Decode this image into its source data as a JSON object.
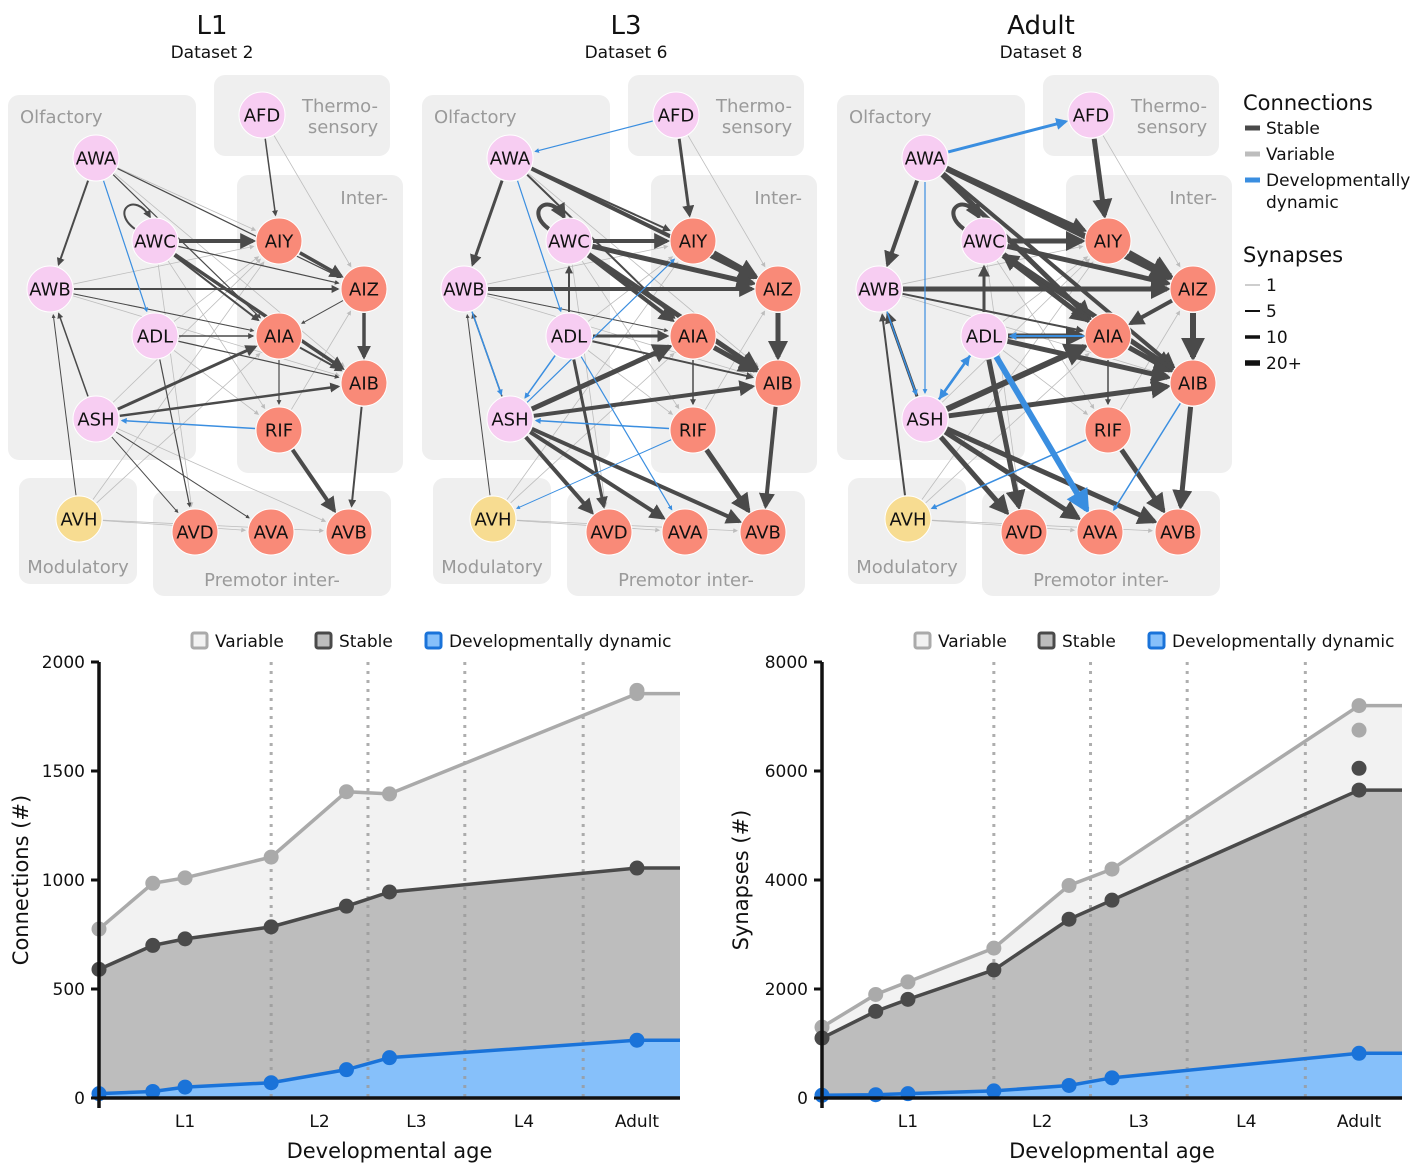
{
  "panels": [
    {
      "title": "L1",
      "subtitle": "Dataset 2"
    },
    {
      "title": "L3",
      "subtitle": "Dataset 6"
    },
    {
      "title": "Adult",
      "subtitle": "Dataset 8"
    }
  ],
  "groups": {
    "olfactory": "Olfactory",
    "thermo1": "Thermo-",
    "thermo2": "sensory",
    "inter": "Inter-",
    "modulatory": "Modulatory",
    "premotor": "Premotor inter-"
  },
  "nodes": [
    "AFD",
    "AWA",
    "AWC",
    "AWB",
    "ADL",
    "ASH",
    "AVH",
    "AIY",
    "AIZ",
    "AIA",
    "AIB",
    "RIF",
    "AVD",
    "AVA",
    "AVB"
  ],
  "legend": {
    "connections_title": "Connections",
    "stable": "Stable",
    "variable": "Variable",
    "dynamic1": "Developmentally",
    "dynamic2": "dynamic",
    "synapses_title": "Synapses",
    "synapse_levels": [
      "1",
      "5",
      "10",
      "20+"
    ]
  },
  "colors": {
    "sensory_node": "#f7cdf2",
    "inter_node": "#f98a78",
    "modulatory_node": "#f7dc91",
    "stable": "#4a4a4a",
    "variable": "#bdbdbd",
    "dynamic": "#3a8ee0",
    "group_bg": "#efefef"
  },
  "chart_data": [
    {
      "type": "area",
      "legend": [
        "Variable",
        "Stable",
        "Developmentally dynamic"
      ],
      "xlabel": "Developmental age",
      "ylabel": "Connections (#)",
      "ylim": [
        0,
        2000
      ],
      "yticks": [
        "0",
        "500",
        "1000",
        "1500",
        "2000"
      ],
      "xticks": [
        "L1",
        "L2",
        "L3",
        "L4",
        "Adult"
      ],
      "stage_boundaries_hours": [
        16,
        25,
        34,
        45
      ],
      "x_hours": [
        0,
        5,
        8,
        16,
        23,
        27,
        50
      ],
      "series": [
        {
          "name": "Variable",
          "values": [
            775,
            985,
            1010,
            1105,
            1405,
            1395,
            1855
          ],
          "adult_points": [
            1855,
            1870
          ]
        },
        {
          "name": "Stable",
          "values": [
            590,
            700,
            730,
            785,
            880,
            945,
            1055
          ],
          "adult_points": [
            1055
          ]
        },
        {
          "name": "Developmentally dynamic",
          "values": [
            20,
            30,
            50,
            70,
            130,
            185,
            265
          ],
          "adult_points": [
            265
          ]
        }
      ]
    },
    {
      "type": "area",
      "legend": [
        "Variable",
        "Stable",
        "Developmentally dynamic"
      ],
      "xlabel": "Developmental age",
      "ylabel": "Synapses (#)",
      "ylim": [
        0,
        8000
      ],
      "yticks": [
        "0",
        "2000",
        "4000",
        "6000",
        "8000"
      ],
      "xticks": [
        "L1",
        "L2",
        "L3",
        "L4",
        "Adult"
      ],
      "stage_boundaries_hours": [
        16,
        25,
        34,
        45
      ],
      "x_hours": [
        0,
        5,
        8,
        16,
        23,
        27,
        50
      ],
      "series": [
        {
          "name": "Variable",
          "values": [
            1300,
            1900,
            2130,
            2750,
            3900,
            4200,
            7200
          ],
          "adult_points": [
            6750,
            7200
          ]
        },
        {
          "name": "Stable",
          "values": [
            1100,
            1590,
            1810,
            2350,
            3280,
            3630,
            5650
          ],
          "adult_points": [
            5650,
            6050
          ]
        },
        {
          "name": "Developmentally dynamic",
          "values": [
            50,
            60,
            80,
            130,
            230,
            370,
            820
          ],
          "adult_points": [
            820
          ]
        }
      ]
    }
  ]
}
